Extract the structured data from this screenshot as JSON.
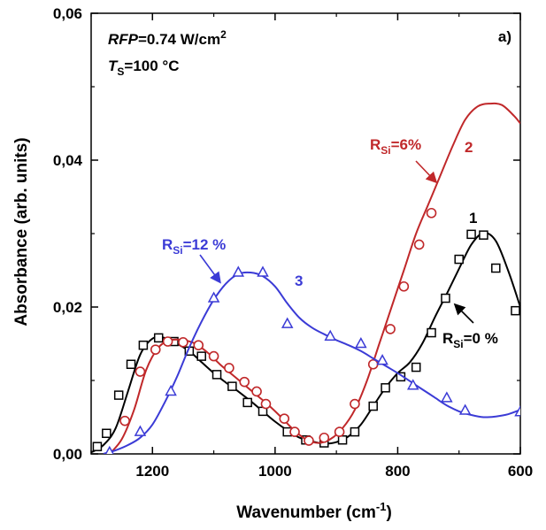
{
  "chart_data": {
    "type": "line",
    "panel_label": "a)",
    "xlabel": {
      "base": "Wavenumber (cm",
      "sup": "-1",
      "end": ")"
    },
    "ylabel": "Absorbance (arb. units)",
    "xlim": [
      1300,
      600
    ],
    "ylim": [
      0.0,
      0.06
    ],
    "x_ticks": [
      1200,
      1000,
      800,
      600
    ],
    "x_tick_labels": [
      "1200",
      "1000",
      "800",
      "600"
    ],
    "y_ticks": [
      0.0,
      0.02,
      0.04,
      0.06
    ],
    "y_tick_labels": [
      "0,00",
      "0,02",
      "0,04",
      "0,06"
    ],
    "conditions": {
      "line1": {
        "italic": "RFP",
        "rest": "=0.74 W/cm",
        "sup": "2"
      },
      "line2": {
        "italic": "T",
        "sub": "S",
        "rest": "=100 °C"
      }
    },
    "series": [
      {
        "id": "1",
        "color": "#000000",
        "marker": "square",
        "curve": [
          [
            1300,
            0.0002
          ],
          [
            1280,
            0.0012
          ],
          [
            1260,
            0.0035
          ],
          [
            1240,
            0.0085
          ],
          [
            1220,
            0.0135
          ],
          [
            1200,
            0.0157
          ],
          [
            1180,
            0.0158
          ],
          [
            1160,
            0.015
          ],
          [
            1140,
            0.014
          ],
          [
            1120,
            0.0125
          ],
          [
            1100,
            0.011
          ],
          [
            1080,
            0.0097
          ],
          [
            1060,
            0.0085
          ],
          [
            1040,
            0.0072
          ],
          [
            1020,
            0.0058
          ],
          [
            1000,
            0.0044
          ],
          [
            980,
            0.0032
          ],
          [
            960,
            0.0022
          ],
          [
            940,
            0.0017
          ],
          [
            920,
            0.0014
          ],
          [
            900,
            0.0016
          ],
          [
            880,
            0.0024
          ],
          [
            860,
            0.004
          ],
          [
            840,
            0.0065
          ],
          [
            820,
            0.009
          ],
          [
            800,
            0.011
          ],
          [
            780,
            0.0125
          ],
          [
            760,
            0.015
          ],
          [
            740,
            0.0185
          ],
          [
            720,
            0.0218
          ],
          [
            700,
            0.0252
          ],
          [
            680,
            0.0285
          ],
          [
            660,
            0.0301
          ],
          [
            640,
            0.029
          ],
          [
            620,
            0.025
          ],
          [
            600,
            0.02
          ]
        ],
        "markers": [
          [
            1290,
            0.001
          ],
          [
            1275,
            0.0028
          ],
          [
            1255,
            0.008
          ],
          [
            1235,
            0.0122
          ],
          [
            1215,
            0.0148
          ],
          [
            1190,
            0.0158
          ],
          [
            1165,
            0.0153
          ],
          [
            1140,
            0.014
          ],
          [
            1120,
            0.0133
          ],
          [
            1095,
            0.0108
          ],
          [
            1070,
            0.0092
          ],
          [
            1045,
            0.007
          ],
          [
            1020,
            0.0058
          ],
          [
            980,
            0.003
          ],
          [
            950,
            0.0019
          ],
          [
            920,
            0.0015
          ],
          [
            890,
            0.0019
          ],
          [
            870,
            0.003
          ],
          [
            840,
            0.0065
          ],
          [
            820,
            0.009
          ],
          [
            795,
            0.0105
          ],
          [
            770,
            0.0118
          ],
          [
            745,
            0.0165
          ],
          [
            722,
            0.0212
          ],
          [
            700,
            0.0265
          ],
          [
            680,
            0.0299
          ],
          [
            660,
            0.0298
          ],
          [
            640,
            0.0253
          ],
          [
            608,
            0.0195
          ]
        ],
        "label": "1",
        "annotation": {
          "main": "R",
          "sub": "Si",
          "rest": "=0 %"
        }
      },
      {
        "id": "2",
        "color": "#c0282a",
        "marker": "circle",
        "curve": [
          [
            1270,
            0.0
          ],
          [
            1250,
            0.002
          ],
          [
            1230,
            0.006
          ],
          [
            1210,
            0.0115
          ],
          [
            1190,
            0.0145
          ],
          [
            1170,
            0.0155
          ],
          [
            1150,
            0.0155
          ],
          [
            1130,
            0.015
          ],
          [
            1110,
            0.0138
          ],
          [
            1090,
            0.0122
          ],
          [
            1070,
            0.0108
          ],
          [
            1050,
            0.0094
          ],
          [
            1030,
            0.008
          ],
          [
            1010,
            0.0066
          ],
          [
            990,
            0.005
          ],
          [
            970,
            0.0033
          ],
          [
            950,
            0.002
          ],
          [
            930,
            0.0015
          ],
          [
            910,
            0.002
          ],
          [
            890,
            0.0035
          ],
          [
            870,
            0.006
          ],
          [
            850,
            0.01
          ],
          [
            830,
            0.015
          ],
          [
            810,
            0.02
          ],
          [
            790,
            0.025
          ],
          [
            770,
            0.03
          ],
          [
            750,
            0.034
          ],
          [
            730,
            0.038
          ],
          [
            710,
            0.042
          ],
          [
            690,
            0.0455
          ],
          [
            670,
            0.0473
          ],
          [
            650,
            0.0477
          ],
          [
            630,
            0.0475
          ],
          [
            610,
            0.046
          ],
          [
            600,
            0.045
          ]
        ],
        "markers": [
          [
            1245,
            0.0045
          ],
          [
            1220,
            0.0112
          ],
          [
            1195,
            0.0142
          ],
          [
            1175,
            0.0153
          ],
          [
            1150,
            0.0152
          ],
          [
            1125,
            0.0148
          ],
          [
            1100,
            0.0133
          ],
          [
            1075,
            0.0117
          ],
          [
            1050,
            0.0098
          ],
          [
            1030,
            0.0085
          ],
          [
            1015,
            0.0068
          ],
          [
            985,
            0.0048
          ],
          [
            968,
            0.003
          ],
          [
            945,
            0.0018
          ],
          [
            920,
            0.0022
          ],
          [
            895,
            0.003
          ],
          [
            870,
            0.0068
          ],
          [
            840,
            0.0122
          ],
          [
            812,
            0.017
          ],
          [
            790,
            0.0228
          ],
          [
            765,
            0.0285
          ],
          [
            745,
            0.0328
          ]
        ],
        "label": "2",
        "annotation": {
          "main": "R",
          "sub": "Si",
          "rest": "=6%"
        }
      },
      {
        "id": "3",
        "color": "#3b3bd6",
        "marker": "triangle",
        "curve": [
          [
            1280,
            0.0
          ],
          [
            1260,
            0.0005
          ],
          [
            1240,
            0.0012
          ],
          [
            1220,
            0.0022
          ],
          [
            1200,
            0.004
          ],
          [
            1180,
            0.007
          ],
          [
            1160,
            0.0105
          ],
          [
            1140,
            0.0145
          ],
          [
            1120,
            0.018
          ],
          [
            1100,
            0.021
          ],
          [
            1080,
            0.0232
          ],
          [
            1060,
            0.0245
          ],
          [
            1040,
            0.0247
          ],
          [
            1020,
            0.0242
          ],
          [
            1000,
            0.0228
          ],
          [
            980,
            0.0205
          ],
          [
            960,
            0.0185
          ],
          [
            940,
            0.0172
          ],
          [
            920,
            0.0163
          ],
          [
            900,
            0.0155
          ],
          [
            880,
            0.0148
          ],
          [
            860,
            0.014
          ],
          [
            840,
            0.013
          ],
          [
            820,
            0.012
          ],
          [
            800,
            0.011
          ],
          [
            780,
            0.0099
          ],
          [
            760,
            0.0088
          ],
          [
            740,
            0.0077
          ],
          [
            720,
            0.0066
          ],
          [
            700,
            0.0058
          ],
          [
            680,
            0.0053
          ],
          [
            660,
            0.005
          ],
          [
            640,
            0.0051
          ],
          [
            620,
            0.0054
          ],
          [
            600,
            0.006
          ]
        ],
        "markers": [
          [
            1270,
            0.0002
          ],
          [
            1220,
            0.003
          ],
          [
            1170,
            0.0085
          ],
          [
            1100,
            0.0212
          ],
          [
            1060,
            0.0247
          ],
          [
            1020,
            0.0247
          ],
          [
            980,
            0.0177
          ],
          [
            910,
            0.016
          ],
          [
            860,
            0.015
          ],
          [
            825,
            0.0127
          ],
          [
            775,
            0.0093
          ],
          [
            720,
            0.0076
          ],
          [
            690,
            0.0059
          ],
          [
            600,
            0.0057
          ]
        ],
        "label": "3",
        "annotation": {
          "main": "R",
          "sub": "Si",
          "rest": "=12 %"
        }
      }
    ]
  }
}
